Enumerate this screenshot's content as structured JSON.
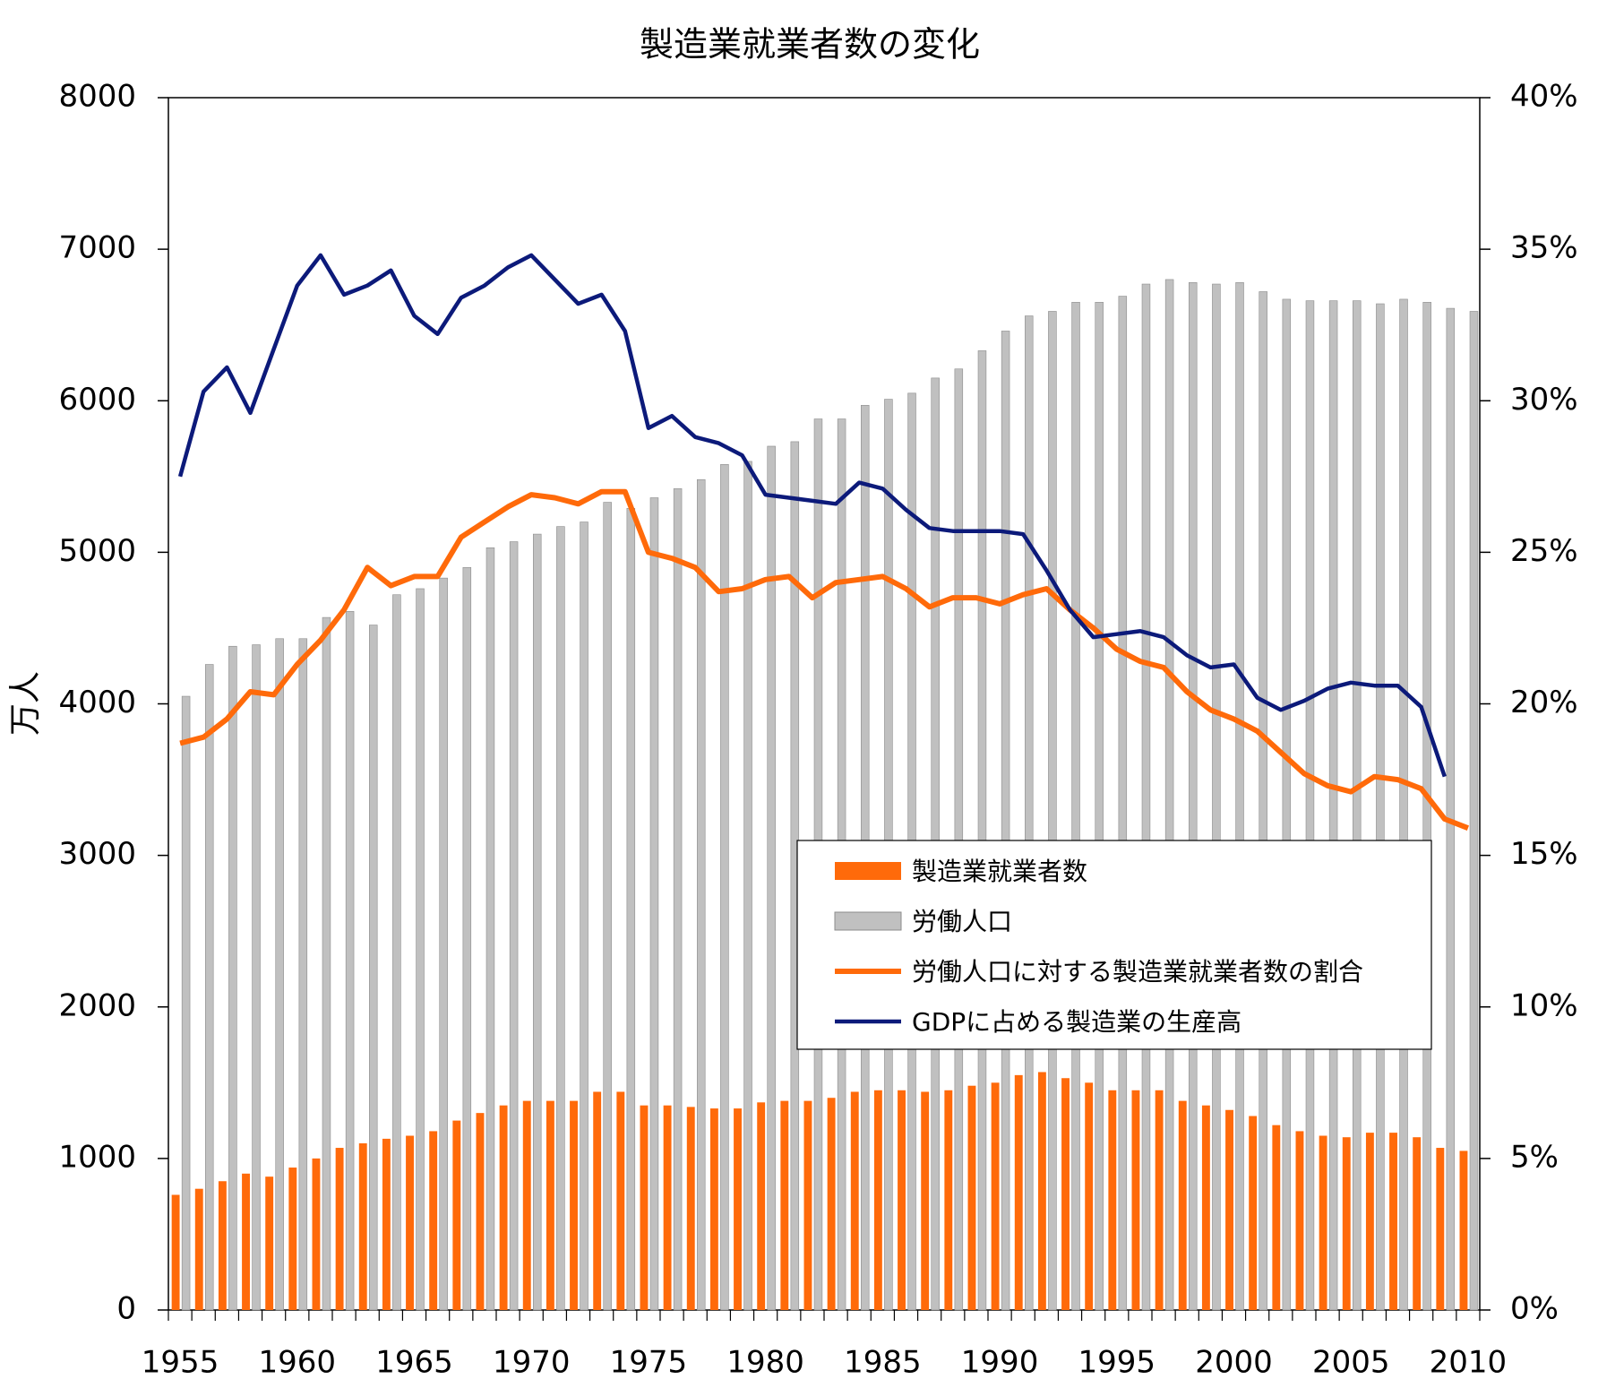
{
  "chart_data": {
    "type": "bar",
    "title": "製造業就業者数の変化",
    "y_label": "万人",
    "categories": [
      1955,
      null,
      null,
      null,
      null,
      1960,
      null,
      null,
      null,
      null,
      1965,
      null,
      null,
      null,
      null,
      1970,
      null,
      null,
      null,
      null,
      1975,
      null,
      null,
      null,
      null,
      1980,
      null,
      null,
      null,
      null,
      1985,
      null,
      null,
      null,
      null,
      1990,
      null,
      null,
      null,
      null,
      1995,
      null,
      null,
      null,
      null,
      2000,
      null,
      null,
      null,
      null,
      2005,
      null,
      null,
      null,
      null,
      2010
    ],
    "ylim": [
      0,
      8000
    ],
    "yticks": [
      0,
      1000,
      2000,
      3000,
      4000,
      5000,
      6000,
      7000,
      8000
    ],
    "y2lim": [
      0,
      40
    ],
    "y2ticks": [
      {
        "value": 0,
        "label": "0%"
      },
      {
        "value": 5,
        "label": "5%"
      },
      {
        "value": 10,
        "label": "10%"
      },
      {
        "value": 15,
        "label": "15%"
      },
      {
        "value": 20,
        "label": "20%"
      },
      {
        "value": 25,
        "label": "25%"
      },
      {
        "value": 30,
        "label": "30%"
      },
      {
        "value": 35,
        "label": "35%"
      },
      {
        "value": 40,
        "label": "40%"
      }
    ],
    "series": [
      {
        "name": "製造業就業者数",
        "type": "bar",
        "color": "#ff6a0a",
        "values": [
          760,
          800,
          850,
          900,
          880,
          940,
          1000,
          1070,
          1100,
          1130,
          1150,
          1180,
          1250,
          1300,
          1350,
          1380,
          1380,
          1380,
          1440,
          1440,
          1350,
          1350,
          1340,
          1330,
          1330,
          1370,
          1380,
          1380,
          1400,
          1440,
          1450,
          1450,
          1440,
          1450,
          1480,
          1500,
          1550,
          1570,
          1530,
          1500,
          1450,
          1450,
          1450,
          1380,
          1350,
          1320,
          1280,
          1220,
          1180,
          1150,
          1140,
          1170,
          1170,
          1140,
          1070,
          1050
        ]
      },
      {
        "name": "労働人口",
        "type": "bar",
        "color": "#c0c0c0",
        "values": [
          4050,
          4260,
          4380,
          4390,
          4430,
          4430,
          4570,
          4610,
          4520,
          4720,
          4760,
          4830,
          4900,
          5030,
          5070,
          5120,
          5170,
          5200,
          5330,
          5290,
          5360,
          5420,
          5480,
          5580,
          5600,
          5700,
          5730,
          5880,
          5880,
          5970,
          6010,
          6050,
          6150,
          6210,
          6330,
          6460,
          6560,
          6590,
          6650,
          6650,
          6690,
          6770,
          6800,
          6780,
          6770,
          6780,
          6720,
          6670,
          6660,
          6660,
          6660,
          6640,
          6670,
          6650,
          6610,
          6590
        ]
      },
      {
        "name": "労働人口に対する製造業就業者数の割合",
        "type": "line",
        "axis": "y2",
        "color": "#ff6a0a",
        "values": [
          18.7,
          18.9,
          19.5,
          20.4,
          20.3,
          21.3,
          22.1,
          23.1,
          24.5,
          23.9,
          24.2,
          24.2,
          25.5,
          26.0,
          26.5,
          26.9,
          26.8,
          26.6,
          27.0,
          27.0,
          25.0,
          24.8,
          24.5,
          23.7,
          23.8,
          24.1,
          24.2,
          23.5,
          24.0,
          24.1,
          24.2,
          23.8,
          23.2,
          23.5,
          23.5,
          23.3,
          23.6,
          23.8,
          23.1,
          22.5,
          21.8,
          21.4,
          21.2,
          20.4,
          19.8,
          19.5,
          19.1,
          18.4,
          17.7,
          17.3,
          17.1,
          17.6,
          17.5,
          17.2,
          16.2,
          15.9
        ]
      },
      {
        "name": "GDPに占める製造業の生産高",
        "type": "line",
        "axis": "y2",
        "color": "#0c1a7a",
        "values": [
          27.5,
          30.3,
          31.1,
          29.6,
          31.7,
          33.8,
          34.8,
          33.5,
          33.8,
          34.3,
          32.8,
          32.2,
          33.4,
          33.8,
          34.4,
          34.8,
          34.0,
          33.2,
          33.5,
          32.3,
          29.1,
          29.5,
          28.8,
          28.6,
          28.2,
          26.9,
          26.8,
          26.7,
          26.6,
          27.3,
          27.1,
          26.4,
          25.8,
          25.7,
          25.7,
          25.7,
          25.6,
          24.4,
          23.1,
          22.2,
          22.3,
          22.4,
          22.2,
          21.6,
          21.2,
          21.3,
          20.2,
          19.8,
          20.1,
          20.5,
          20.7,
          20.6,
          20.6,
          19.9,
          17.6,
          null
        ]
      }
    ]
  }
}
